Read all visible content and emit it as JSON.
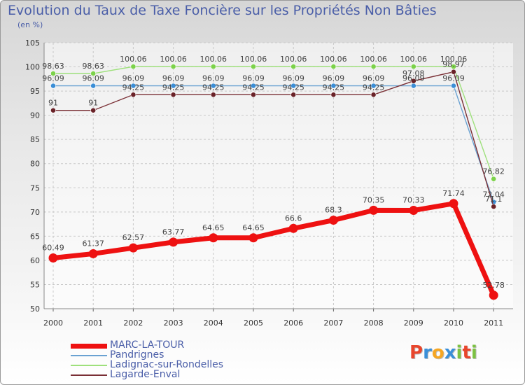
{
  "title": "Evolution du Taux de Taxe Foncière sur les Propriétés Non Bâties",
  "unit_label": "(en %)",
  "logo": {
    "text": "Proxiti",
    "letters": [
      {
        "ch": "P",
        "color": "#e8452c"
      },
      {
        "ch": "r",
        "color": "#3a8fd8"
      },
      {
        "ch": "o",
        "color": "#f5a623"
      },
      {
        "ch": "x",
        "color": "#3a8fd8"
      },
      {
        "ch": "i",
        "color": "#7cc242"
      },
      {
        "ch": "t",
        "color": "#e8452c"
      },
      {
        "ch": "i",
        "color": "#7cc242"
      }
    ]
  },
  "chart_data": {
    "type": "line",
    "title": "Evolution du Taux de Taxe Foncière sur les Propriétés Non Bâties",
    "ylabel": "(en %)",
    "xlabel": "",
    "ylim": [
      50,
      105
    ],
    "yticks": [
      50,
      55,
      60,
      65,
      70,
      75,
      80,
      85,
      90,
      95,
      100,
      105
    ],
    "grid": true,
    "legend_position": "bottom-left",
    "categories": [
      "2000",
      "2001",
      "2002",
      "2003",
      "2004",
      "2005",
      "2006",
      "2007",
      "2008",
      "2009",
      "2010",
      "2011"
    ],
    "series": [
      {
        "name": "MARC-LA-TOUR",
        "color": "#ee1111",
        "thick": true,
        "values": [
          60.49,
          61.37,
          62.57,
          63.77,
          64.65,
          64.65,
          66.6,
          68.3,
          70.35,
          70.33,
          71.74,
          52.78
        ],
        "labels": [
          "60.49",
          "61.37",
          "62.57",
          "63.77",
          "64.65",
          "64.65",
          "66.6",
          "68.3",
          "70.35",
          "70.33",
          "71.74",
          "52.78"
        ]
      },
      {
        "name": "Pandrignes",
        "color": "#6aa2d2",
        "marker": "#3b8ed6",
        "values": [
          96.09,
          96.09,
          96.09,
          96.09,
          96.09,
          96.09,
          96.09,
          96.09,
          96.09,
          96.09,
          96.09,
          72.04
        ],
        "labels": [
          "96.09",
          "96.09",
          "96.09",
          "96.09",
          "96.09",
          "96.09",
          "96.09",
          "96.09",
          "96.09",
          "96.09",
          "96.09",
          "72.04"
        ]
      },
      {
        "name": "Ladignac-sur-Rondelles",
        "color": "#9ee07c",
        "marker": "#7cd24a",
        "values": [
          98.63,
          98.63,
          100.06,
          100.06,
          100.06,
          100.06,
          100.06,
          100.06,
          100.06,
          100.06,
          100.06,
          76.82
        ],
        "labels": [
          "98.63",
          "98.63",
          "100.06",
          "100.06",
          "100.06",
          "100.06",
          "100.06",
          "100.06",
          "100.06",
          "100.06",
          "100.06",
          "76.82"
        ]
      },
      {
        "name": "Lagarde-Enval",
        "color": "#7a2f35",
        "marker": "#6a2228",
        "values": [
          91,
          91,
          94.25,
          94.25,
          94.25,
          94.25,
          94.25,
          94.25,
          94.25,
          97.08,
          98.97,
          71.1
        ],
        "labels": [
          "91",
          "91",
          "94.25",
          "94.25",
          "94.25",
          "94.25",
          "94.25",
          "94.25",
          "94.25",
          "97.08",
          "98.97",
          "71.1"
        ]
      }
    ]
  }
}
